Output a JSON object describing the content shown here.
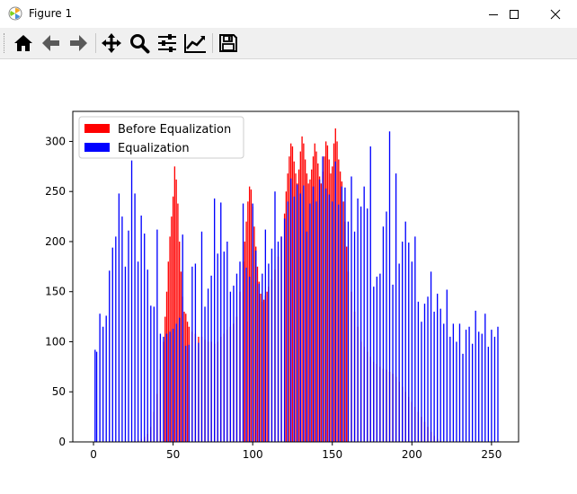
{
  "window": {
    "title": "Figure 1",
    "icon": "matplotlib-figure-icon"
  },
  "window_controls": [
    "minimize-icon",
    "maximize-icon",
    "close-icon"
  ],
  "toolbar": {
    "buttons": [
      {
        "name": "home-button",
        "icon": "home-icon",
        "tooltip": "Reset original view"
      },
      {
        "name": "back-button",
        "icon": "arrow-left-icon",
        "tooltip": "Back to previous view"
      },
      {
        "name": "forward-button",
        "icon": "arrow-right-icon",
        "tooltip": "Forward to next view"
      },
      {
        "name": "pan-button",
        "icon": "move-arrows-icon",
        "tooltip": "Pan axes"
      },
      {
        "name": "zoom-button",
        "icon": "magnifier-icon",
        "tooltip": "Zoom to rectangle"
      },
      {
        "name": "subplots-button",
        "icon": "sliders-icon",
        "tooltip": "Configure subplots"
      },
      {
        "name": "edit-axes-button",
        "icon": "line-chart-icon",
        "tooltip": "Edit axis"
      },
      {
        "name": "save-button",
        "icon": "floppy-disk-icon",
        "tooltip": "Save the figure"
      }
    ]
  },
  "chart_data": {
    "type": "bar",
    "title": "",
    "xlabel": "",
    "ylabel": "",
    "xlim": [
      -13,
      267
    ],
    "ylim": [
      0,
      330
    ],
    "xticks": [
      0,
      50,
      100,
      150,
      200,
      250
    ],
    "yticks": [
      0,
      50,
      100,
      150,
      200,
      250,
      300
    ],
    "legend": {
      "position": "top-left"
    },
    "series": [
      {
        "name": "Before Equalization",
        "color": "#ff0000",
        "x": [
          26,
          28,
          30,
          32,
          34,
          36,
          38,
          40,
          42,
          44,
          45,
          46,
          47,
          48,
          49,
          50,
          51,
          52,
          53,
          54,
          55,
          56,
          57,
          58,
          59,
          60,
          62,
          64,
          66,
          68,
          70,
          72,
          74,
          76,
          78,
          80,
          82,
          84,
          86,
          88,
          90,
          92,
          94,
          95,
          96,
          97,
          98,
          99,
          100,
          101,
          102,
          103,
          104,
          105,
          106,
          107,
          108,
          109,
          110,
          112,
          114,
          116,
          118,
          120,
          121,
          122,
          123,
          124,
          125,
          126,
          127,
          128,
          129,
          130,
          131,
          132,
          133,
          134,
          135,
          136,
          137,
          138,
          139,
          140,
          141,
          142,
          143,
          144,
          145,
          146,
          147,
          148,
          149,
          150,
          151,
          152,
          153,
          154,
          155,
          156,
          157,
          158,
          159,
          160,
          162,
          164,
          166,
          168,
          170,
          172,
          174,
          176,
          178,
          180,
          182,
          184,
          186,
          188,
          190,
          192,
          194,
          196,
          198,
          200,
          202,
          204,
          206,
          208,
          210,
          212,
          214,
          216,
          218
        ],
        "values": [
          1,
          2,
          3,
          5,
          8,
          15,
          30,
          48,
          72,
          100,
          125,
          150,
          180,
          205,
          225,
          245,
          275,
          262,
          238,
          200,
          170,
          145,
          130,
          128,
          120,
          115,
          110,
          108,
          105,
          105,
          102,
          100,
          100,
          98,
          100,
          105,
          108,
          112,
          115,
          118,
          125,
          150,
          180,
          200,
          220,
          240,
          255,
          252,
          235,
          215,
          195,
          175,
          160,
          148,
          140,
          142,
          146,
          150,
          155,
          162,
          172,
          185,
          205,
          228,
          250,
          268,
          285,
          298,
          295,
          280,
          268,
          258,
          272,
          290,
          305,
          298,
          282,
          268,
          258,
          262,
          272,
          285,
          298,
          290,
          278,
          265,
          258,
          270,
          285,
          300,
          296,
          282,
          268,
          275,
          298,
          313,
          300,
          282,
          270,
          260,
          240,
          220,
          195,
          170,
          150,
          130,
          115,
          100,
          95,
          90,
          85,
          80,
          78,
          75,
          73,
          72,
          70,
          68,
          65,
          60,
          55,
          50,
          45,
          40,
          35,
          30,
          25,
          20,
          15,
          10,
          6,
          3,
          1
        ]
      },
      {
        "name": "Equalization",
        "color": "#0000ff",
        "x": [
          1,
          2,
          4,
          6,
          8,
          10,
          12,
          14,
          16,
          18,
          20,
          22,
          24,
          26,
          28,
          30,
          32,
          34,
          36,
          38,
          40,
          42,
          44,
          46,
          48,
          50,
          52,
          54,
          56,
          58,
          60,
          62,
          64,
          66,
          68,
          70,
          72,
          74,
          76,
          78,
          80,
          82,
          84,
          86,
          88,
          90,
          92,
          94,
          96,
          98,
          100,
          102,
          104,
          106,
          108,
          110,
          112,
          114,
          116,
          118,
          120,
          122,
          124,
          126,
          128,
          130,
          132,
          134,
          136,
          138,
          140,
          142,
          144,
          146,
          148,
          150,
          152,
          154,
          156,
          158,
          160,
          162,
          164,
          166,
          168,
          170,
          172,
          174,
          176,
          178,
          180,
          182,
          184,
          186,
          188,
          190,
          192,
          194,
          196,
          198,
          200,
          202,
          204,
          206,
          208,
          210,
          212,
          214,
          216,
          218,
          220,
          222,
          224,
          226,
          228,
          230,
          232,
          234,
          236,
          238,
          240,
          242,
          244,
          246,
          248,
          250,
          252,
          254
        ],
        "values": [
          92,
          90,
          128,
          115,
          126,
          171,
          194,
          205,
          248,
          225,
          175,
          211,
          281,
          248,
          180,
          226,
          208,
          172,
          136,
          135,
          212,
          108,
          105,
          108,
          110,
          113,
          118,
          124,
          207,
          96,
          97,
          175,
          178,
          99,
          210,
          135,
          153,
          166,
          243,
          188,
          239,
          190,
          200,
          150,
          156,
          168,
          180,
          238,
          174,
          165,
          238,
          191,
          158,
          168,
          212,
          178,
          193,
          250,
          200,
          205,
          223,
          240,
          263,
          245,
          257,
          248,
          256,
          210,
          238,
          255,
          240,
          262,
          285,
          253,
          247,
          240,
          280,
          237,
          255,
          254,
          220,
          265,
          210,
          243,
          235,
          255,
          233,
          295,
          155,
          165,
          168,
          215,
          230,
          310,
          157,
          268,
          178,
          200,
          220,
          199,
          180,
          205,
          140,
          120,
          138,
          145,
          170,
          130,
          148,
          133,
          118,
          152,
          105,
          118,
          100,
          118,
          88,
          112,
          115,
          98,
          131,
          110,
          108,
          128,
          95,
          112,
          105,
          115
        ]
      }
    ]
  }
}
